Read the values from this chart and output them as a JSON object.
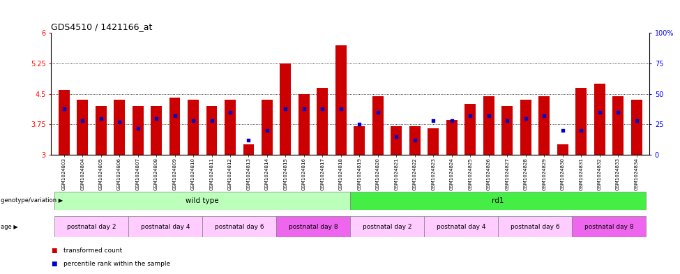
{
  "title": "GDS4510 / 1421166_at",
  "samples": [
    "GSM1024803",
    "GSM1024804",
    "GSM1024805",
    "GSM1024806",
    "GSM1024807",
    "GSM1024808",
    "GSM1024809",
    "GSM1024810",
    "GSM1024811",
    "GSM1024812",
    "GSM1024813",
    "GSM1024814",
    "GSM1024815",
    "GSM1024816",
    "GSM1024817",
    "GSM1024818",
    "GSM1024819",
    "GSM1024820",
    "GSM1024821",
    "GSM1024822",
    "GSM1024823",
    "GSM1024824",
    "GSM1024825",
    "GSM1024826",
    "GSM1024827",
    "GSM1024828",
    "GSM1024829",
    "GSM1024830",
    "GSM1024831",
    "GSM1024832",
    "GSM1024833",
    "GSM1024834"
  ],
  "red_values": [
    4.6,
    4.35,
    4.2,
    4.35,
    4.2,
    4.2,
    4.4,
    4.35,
    4.2,
    4.35,
    3.25,
    4.35,
    5.25,
    4.5,
    4.65,
    5.7,
    3.7,
    4.45,
    3.7,
    3.7,
    3.65,
    3.85,
    4.25,
    4.45,
    4.2,
    4.35,
    4.45,
    3.25,
    4.65,
    4.75,
    4.45,
    4.35
  ],
  "blue_values": [
    38,
    28,
    30,
    27,
    22,
    30,
    32,
    28,
    28,
    35,
    12,
    20,
    38,
    38,
    38,
    38,
    25,
    35,
    15,
    12,
    28,
    28,
    32,
    32,
    28,
    30,
    32,
    20,
    20,
    35,
    35,
    28
  ],
  "ylim": [
    3.0,
    6.0
  ],
  "yticks_left": [
    3.0,
    3.75,
    4.5,
    5.25,
    6.0
  ],
  "yticks_right": [
    0,
    25,
    50,
    75,
    100
  ],
  "hlines": [
    3.75,
    4.5,
    5.25
  ],
  "bar_color": "#cc0000",
  "dot_color": "#0000cc",
  "bar_width": 0.6,
  "genotype_groups": [
    {
      "label": "wild type",
      "start": 0,
      "end": 15,
      "color": "#bbffbb"
    },
    {
      "label": "rd1",
      "start": 16,
      "end": 31,
      "color": "#44ee44"
    }
  ],
  "age_groups": [
    {
      "label": "postnatal day 2",
      "start": 0,
      "end": 3,
      "color": "#ffccff"
    },
    {
      "label": "postnatal day 4",
      "start": 4,
      "end": 7,
      "color": "#ffccff"
    },
    {
      "label": "postnatal day 6",
      "start": 8,
      "end": 11,
      "color": "#ffccff"
    },
    {
      "label": "postnatal day 8",
      "start": 12,
      "end": 15,
      "color": "#ee66ee"
    },
    {
      "label": "postnatal day 2",
      "start": 16,
      "end": 19,
      "color": "#ffccff"
    },
    {
      "label": "postnatal day 4",
      "start": 20,
      "end": 23,
      "color": "#ffccff"
    },
    {
      "label": "postnatal day 6",
      "start": 24,
      "end": 27,
      "color": "#ffccff"
    },
    {
      "label": "postnatal day 8",
      "start": 28,
      "end": 31,
      "color": "#ee66ee"
    }
  ],
  "legend_items": [
    {
      "label": "transformed count",
      "color": "#cc0000"
    },
    {
      "label": "percentile rank within the sample",
      "color": "#0000cc"
    }
  ],
  "fig_width": 9.75,
  "fig_height": 3.93,
  "dpi": 100
}
